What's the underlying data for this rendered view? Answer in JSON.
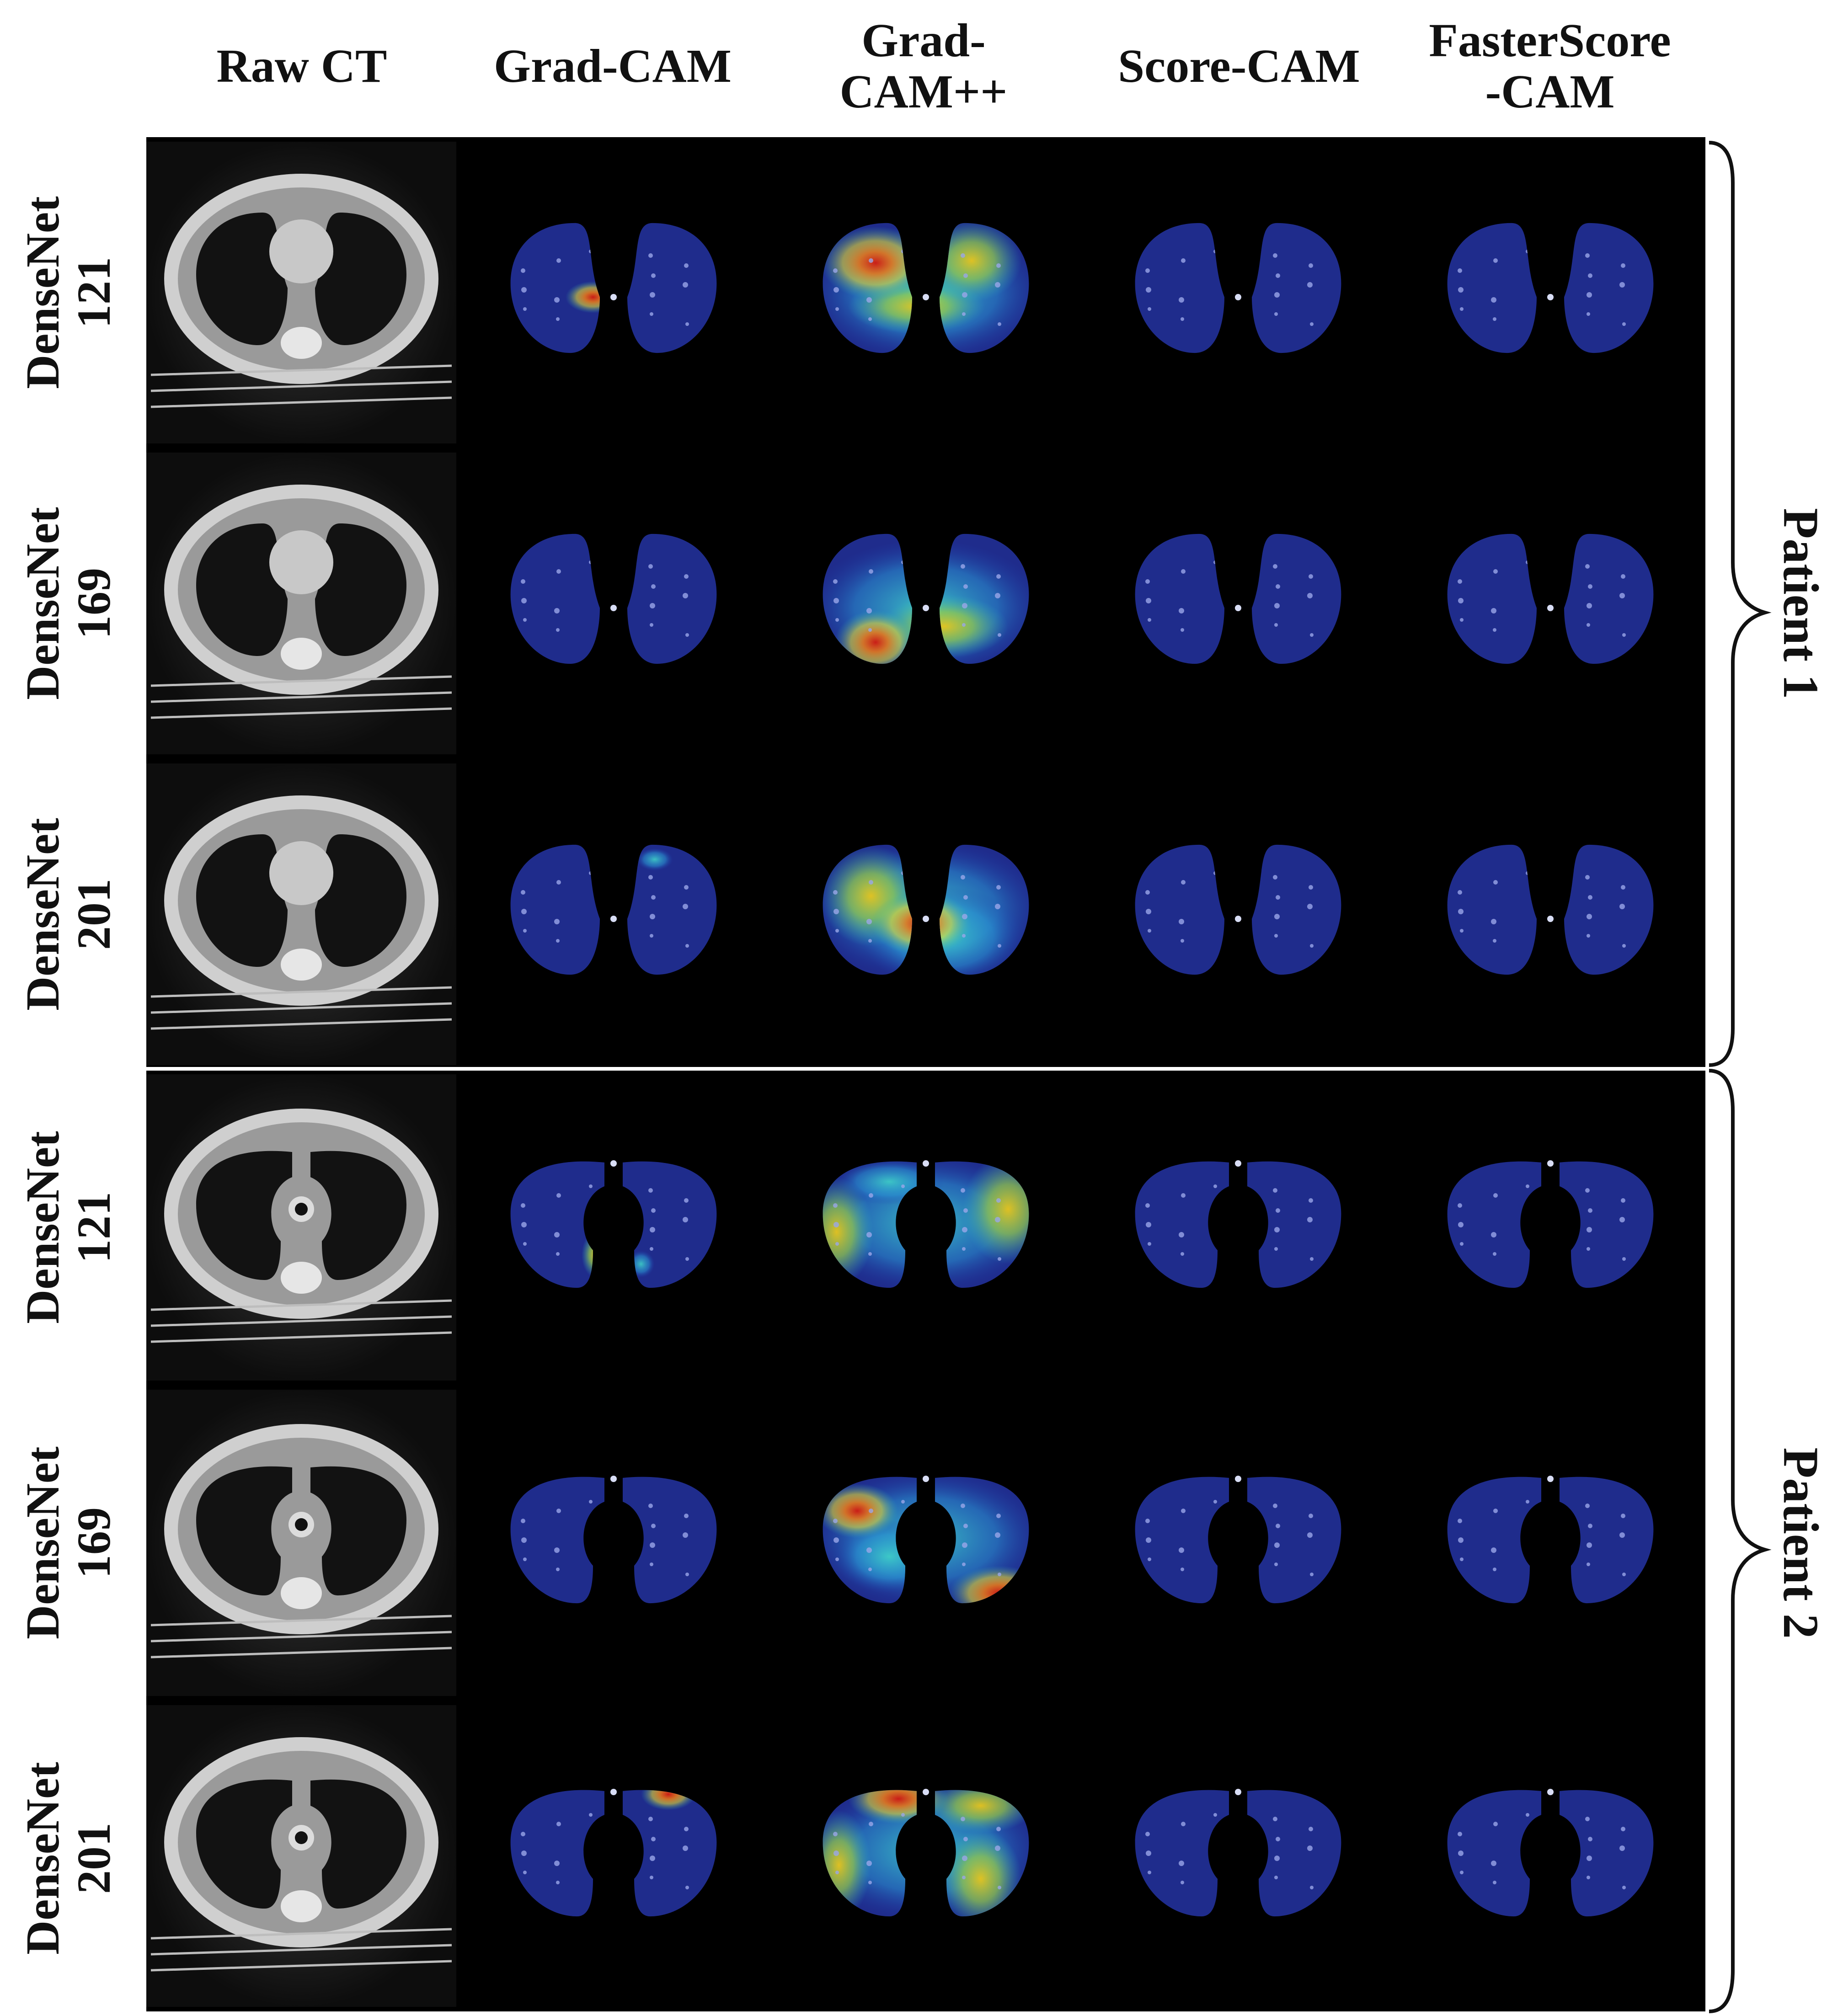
{
  "columns": [
    {
      "label": "Raw CT"
    },
    {
      "label": "Grad-CAM"
    },
    {
      "label": "Grad-\nCAM++"
    },
    {
      "label": "Score-CAM"
    },
    {
      "label": "FasterScore\n-CAM"
    }
  ],
  "rows": [
    {
      "model": "DenseNet",
      "depth": "121"
    },
    {
      "model": "DenseNet",
      "depth": "169"
    },
    {
      "model": "DenseNet",
      "depth": "201"
    },
    {
      "model": "DenseNet",
      "depth": "121"
    },
    {
      "model": "DenseNet",
      "depth": "169"
    },
    {
      "model": "DenseNet",
      "depth": "201"
    }
  ],
  "patients": [
    {
      "label": "Patient 1"
    },
    {
      "label": "Patient 2"
    }
  ]
}
